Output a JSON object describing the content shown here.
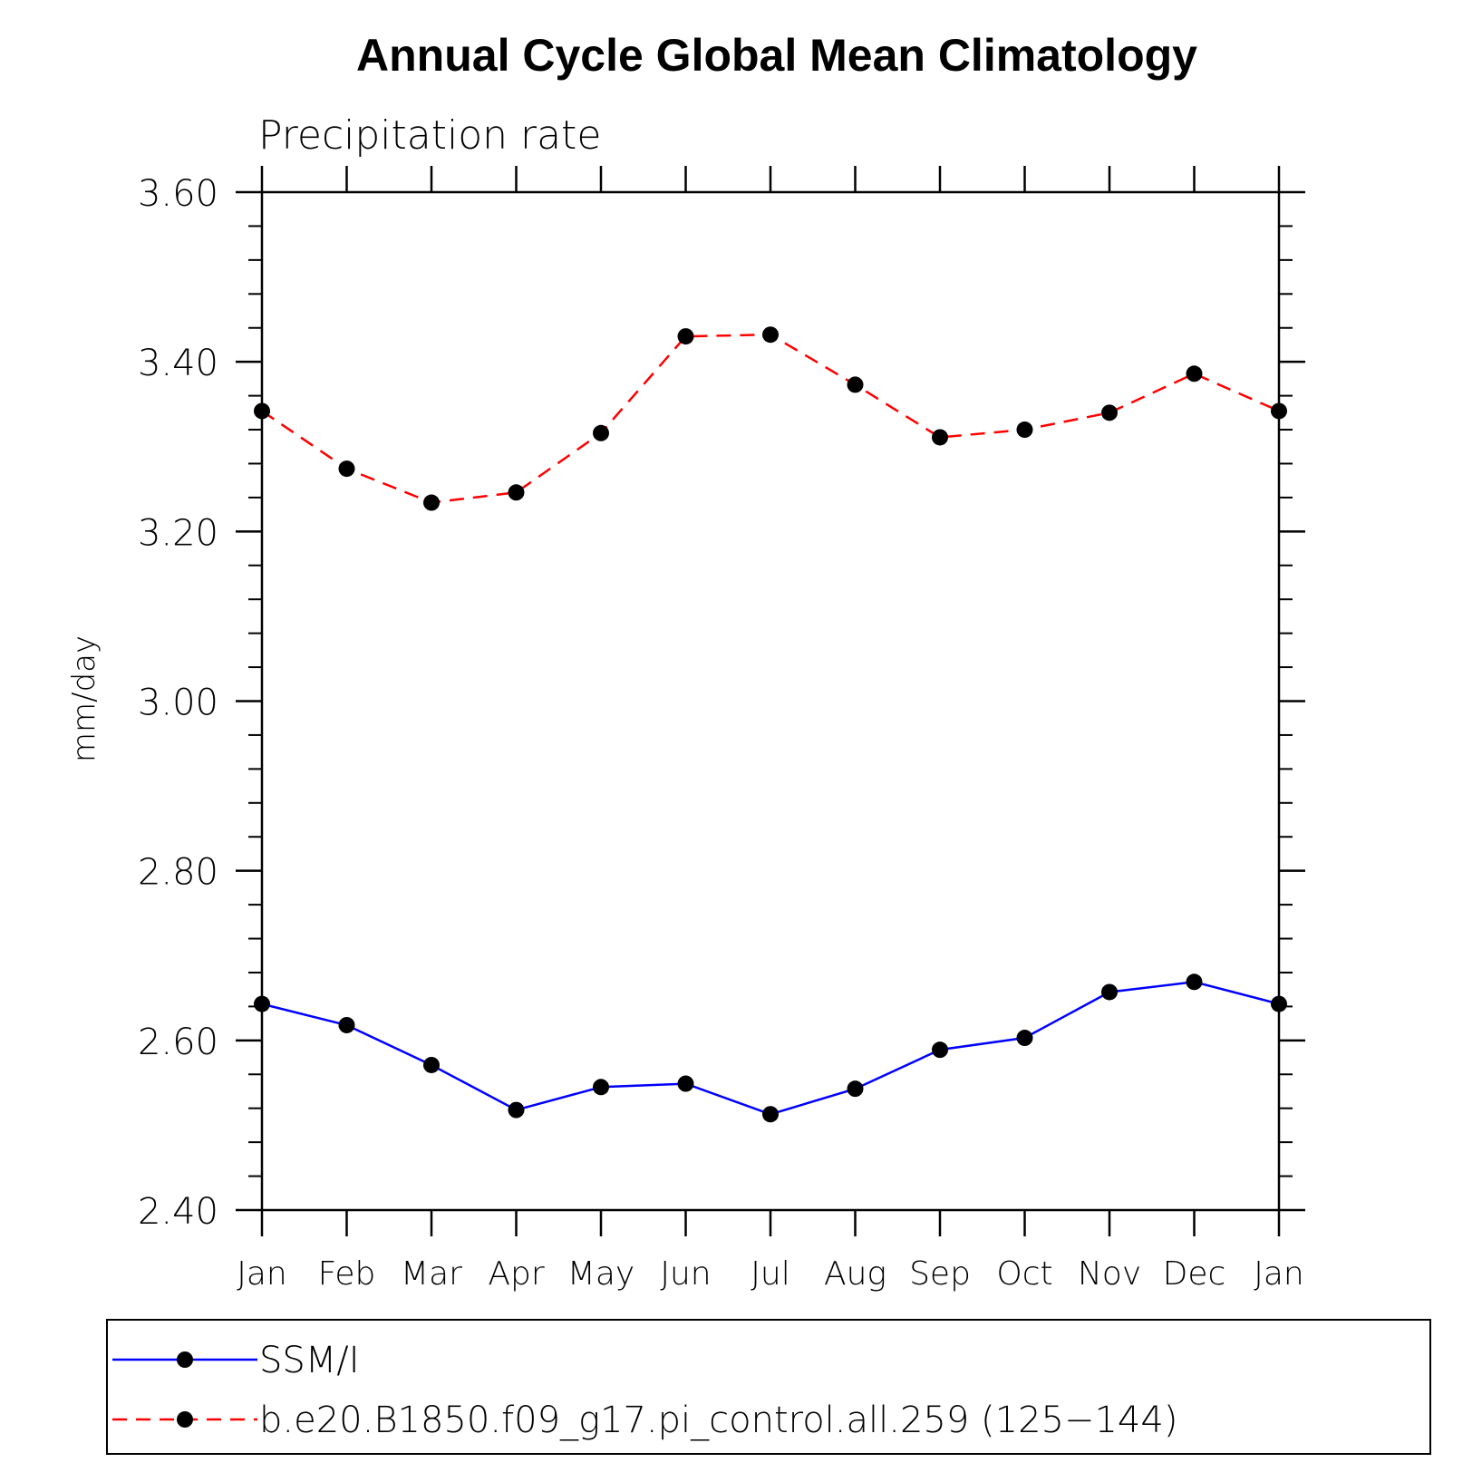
{
  "chart_data": {
    "type": "line",
    "title": "Annual Cycle Global Mean Climatology",
    "subtitle": "Precipitation rate",
    "ylabel": "mm/day",
    "xlabel": "",
    "ylim": [
      2.4,
      3.6
    ],
    "yticks": [
      "2.40",
      "2.60",
      "2.80",
      "3.00",
      "3.20",
      "3.40",
      "3.60"
    ],
    "categories": [
      "Jan",
      "Feb",
      "Mar",
      "Apr",
      "May",
      "Jun",
      "Jul",
      "Aug",
      "Sep",
      "Oct",
      "Nov",
      "Dec",
      "Jan"
    ],
    "grid": false,
    "legend_position": "bottom",
    "series": [
      {
        "name": "SSM/I",
        "color": "#0000ff",
        "style": "solid",
        "marker": "filled-circle",
        "values": [
          2.643,
          2.618,
          2.571,
          2.518,
          2.545,
          2.549,
          2.513,
          2.543,
          2.589,
          2.603,
          2.657,
          2.669,
          2.643
        ]
      },
      {
        "name": "b.e20.B1850.f09_g17.pi_control.all.259 (125−144)",
        "color": "#ff0000",
        "style": "dashed",
        "marker": "filled-circle",
        "values": [
          3.342,
          3.274,
          3.234,
          3.246,
          3.316,
          3.43,
          3.432,
          3.373,
          3.311,
          3.32,
          3.34,
          3.386,
          3.342
        ]
      }
    ]
  }
}
